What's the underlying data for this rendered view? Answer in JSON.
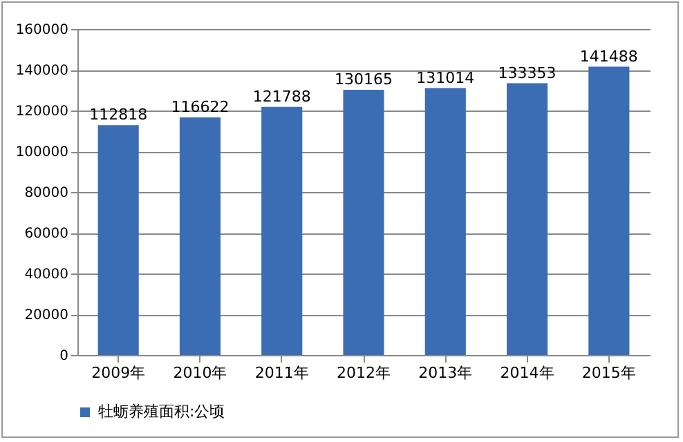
{
  "chart_data": {
    "type": "bar",
    "categories": [
      "2009年",
      "2010年",
      "2011年",
      "2012年",
      "2013年",
      "2014年",
      "2015年"
    ],
    "series": [
      {
        "name": "牡蛎养殖面积:公顷",
        "color": "#3b6db5",
        "values": [
          112818,
          116622,
          121788,
          130165,
          131014,
          133353,
          141488
        ]
      }
    ],
    "ylim": [
      0,
      160000
    ],
    "yticks": [
      0,
      20000,
      40000,
      60000,
      80000,
      100000,
      120000,
      140000,
      160000
    ],
    "grid": "y",
    "legend": "bottom",
    "data_labels": true
  }
}
